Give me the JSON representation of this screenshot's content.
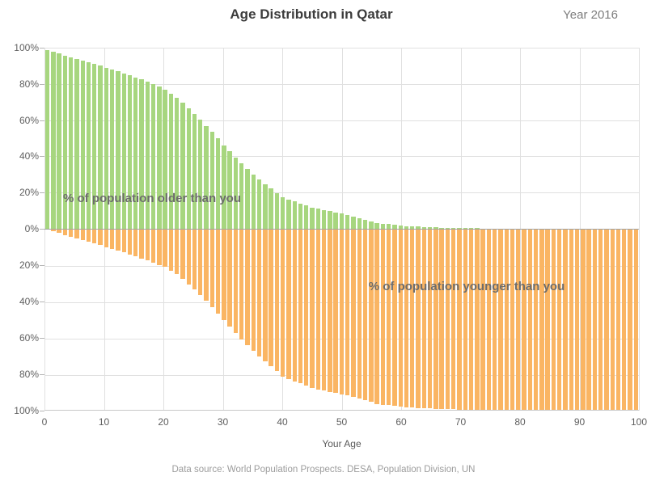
{
  "header": {
    "title": "Age Distribution in Qatar",
    "year_label": "Year 2016"
  },
  "annotations": {
    "older": "% of population older than you",
    "younger": "% of population younger than you"
  },
  "axes": {
    "x_label": "Your Age",
    "x_ticks": [
      "0",
      "10",
      "20",
      "30",
      "40",
      "50",
      "60",
      "70",
      "80",
      "90",
      "100"
    ],
    "y_ticks_upper": [
      "100%",
      "80%",
      "60%",
      "40%",
      "20%",
      "0%"
    ],
    "y_ticks_lower": [
      "20%",
      "40%",
      "60%",
      "80%",
      "100%"
    ]
  },
  "footer": {
    "source": "Data source: World Population Prospects. DESA, Population Division, UN"
  },
  "colors": {
    "older_bar": "#a7d67f",
    "younger_bar": "#fab563",
    "grid": "#e0e0e0",
    "zero_line": "#a3a3a3",
    "axis_line": "#c8c8c8",
    "title_text": "#3c3c3c",
    "year_text": "#7d7d7d",
    "annotation_text": "#6d6d6d",
    "tick_text": "#5f5f5f",
    "source_text": "#9c9c9c"
  },
  "chart_data": {
    "type": "bar",
    "title": "Age Distribution in Qatar",
    "subtitle": "Year 2016",
    "xlabel": "Your Age",
    "x_range": [
      0,
      100
    ],
    "ylim_upper_percent": [
      0,
      100
    ],
    "ylim_lower_percent": [
      0,
      100
    ],
    "grid": true,
    "legend_position": "in-plot annotations",
    "ages": [
      0,
      1,
      2,
      3,
      4,
      5,
      6,
      7,
      8,
      9,
      10,
      11,
      12,
      13,
      14,
      15,
      16,
      17,
      18,
      19,
      20,
      21,
      22,
      23,
      24,
      25,
      26,
      27,
      28,
      29,
      30,
      31,
      32,
      33,
      34,
      35,
      36,
      37,
      38,
      39,
      40,
      41,
      42,
      43,
      44,
      45,
      46,
      47,
      48,
      49,
      50,
      51,
      52,
      53,
      54,
      55,
      56,
      57,
      58,
      59,
      60,
      61,
      62,
      63,
      64,
      65,
      66,
      67,
      68,
      69,
      70,
      71,
      72,
      73,
      74,
      75,
      76,
      77,
      78,
      79,
      80,
      81,
      82,
      83,
      84,
      85,
      86,
      87,
      88,
      89,
      90,
      91,
      92,
      93,
      94,
      95,
      96,
      97,
      98,
      99,
      100
    ],
    "series": [
      {
        "name": "% of population older than you",
        "color": "#a7d67f",
        "orientation": "up",
        "values": [
          98.8,
          97.7,
          96.7,
          95.7,
          94.8,
          93.9,
          93.0,
          92.0,
          91.0,
          90.0,
          88.9,
          87.9,
          86.9,
          85.8,
          84.7,
          83.6,
          82.5,
          81.3,
          80.0,
          78.5,
          76.8,
          74.7,
          72.3,
          69.5,
          66.4,
          63.5,
          60.3,
          56.9,
          53.4,
          49.8,
          46.2,
          42.8,
          39.4,
          36.1,
          33.0,
          30.0,
          27.3,
          24.6,
          22.1,
          19.7,
          17.5,
          16.2,
          15.0,
          13.9,
          12.8,
          11.8,
          11.0,
          10.3,
          9.7,
          9.0,
          8.3,
          7.5,
          6.6,
          5.7,
          4.8,
          4.0,
          3.3,
          2.9,
          2.5,
          2.1,
          1.8,
          1.55,
          1.35,
          1.15,
          1.0,
          0.85,
          0.7,
          0.6,
          0.5,
          0.45,
          0.4,
          0.35,
          0.3,
          0.25,
          0.2,
          0.18,
          0.15,
          0.13,
          0.11,
          0.1,
          0.08,
          0.07,
          0.06,
          0.05,
          0.04,
          0.04,
          0.03,
          0.03,
          0.02,
          0.02,
          0.01,
          0.01,
          0.01,
          0.01,
          0,
          0,
          0,
          0,
          0,
          0,
          0
        ]
      },
      {
        "name": "% of population younger than you",
        "color": "#fab563",
        "orientation": "down",
        "values": [
          0.1,
          1.3,
          2.3,
          3.4,
          4.3,
          5.2,
          6.0,
          7.0,
          8.0,
          8.9,
          10.1,
          11.1,
          12.0,
          13.1,
          14.2,
          15.3,
          16.3,
          17.4,
          18.5,
          19.8,
          21.1,
          22.9,
          24.9,
          27.4,
          30.7,
          33.3,
          36.3,
          39.6,
          43.0,
          46.6,
          50.4,
          53.8,
          57.3,
          60.8,
          64.0,
          67.3,
          70.0,
          72.9,
          75.5,
          78.1,
          81.2,
          82.6,
          83.9,
          85.0,
          86.2,
          87.4,
          88.3,
          89.1,
          89.6,
          90.3,
          90.9,
          91.6,
          92.5,
          93.4,
          94.4,
          95.3,
          96.3,
          96.7,
          97.1,
          97.5,
          97.9,
          98.1,
          98.3,
          98.5,
          98.7,
          98.85,
          99.0,
          99.1,
          99.25,
          99.3,
          99.4,
          99.45,
          99.5,
          99.55,
          99.6,
          99.64,
          99.68,
          99.72,
          99.76,
          99.8,
          99.82,
          99.84,
          99.86,
          99.88,
          99.9,
          99.91,
          99.92,
          99.93,
          99.94,
          99.95,
          99.96,
          99.97,
          99.97,
          99.98,
          99.98,
          99.99,
          99.99,
          99.99,
          99.99,
          100,
          100
        ]
      }
    ]
  }
}
